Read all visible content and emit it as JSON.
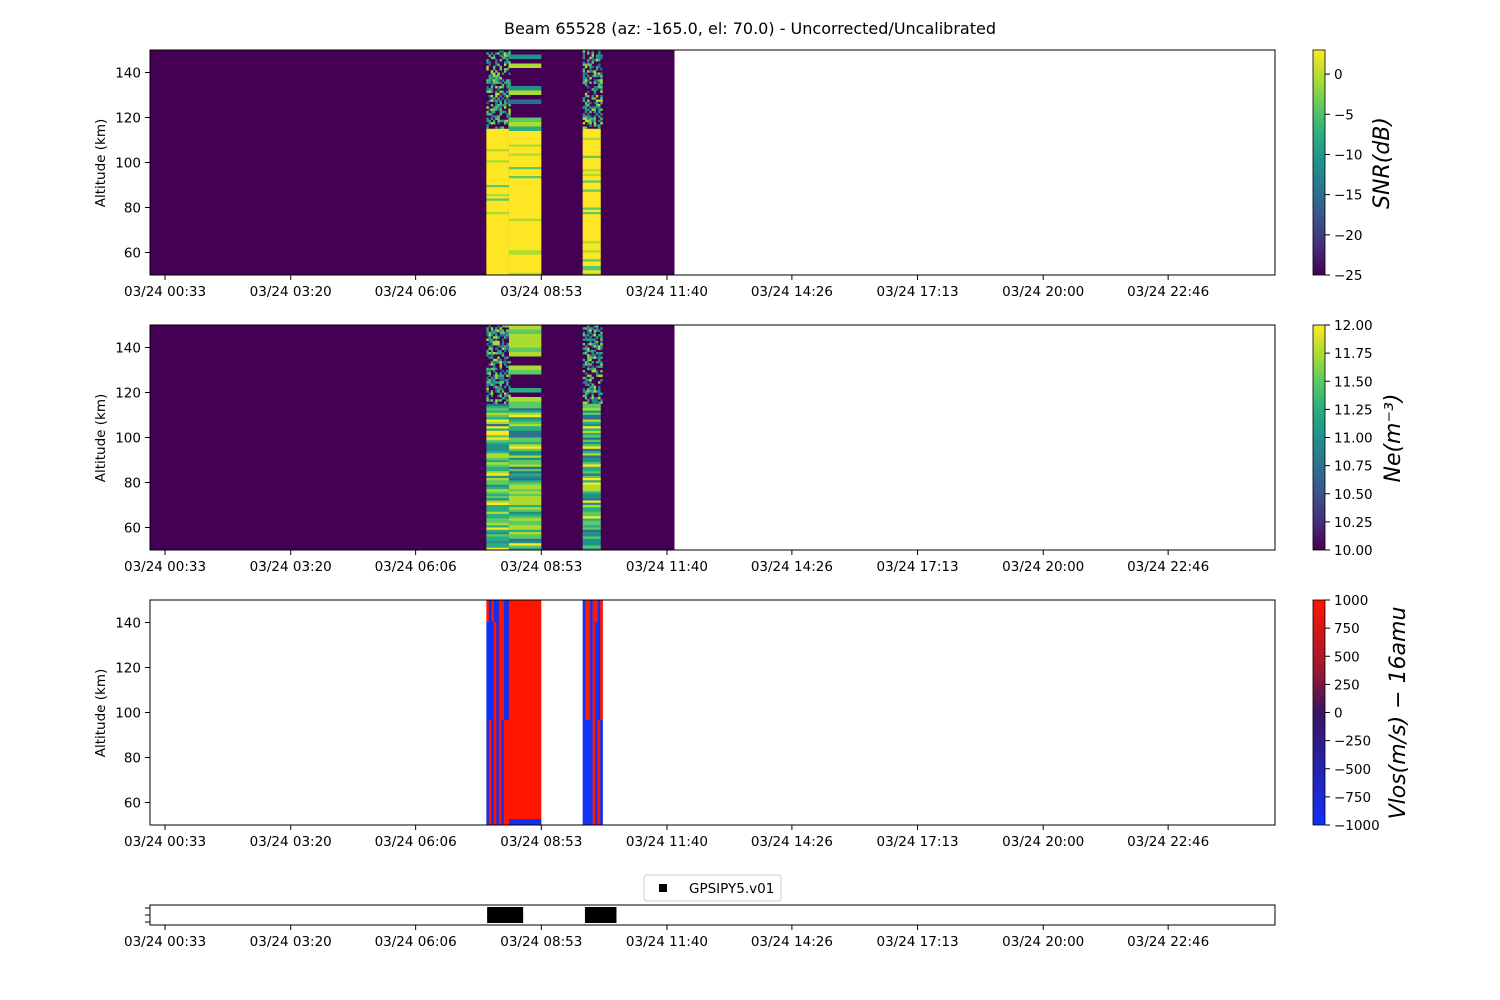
{
  "figure": {
    "title": "Beam 65528 (az: -165.0, el: 70.0) - Uncorrected/Uncalibrated"
  },
  "chart_data": [
    {
      "type": "heatmap",
      "id": "snr",
      "ylabel": "Altitude (km)",
      "colorbar_label": "SNR(dB)",
      "colorbar_ticks": [
        "0",
        "−5",
        "−10",
        "−15",
        "−20",
        "−25"
      ],
      "colorbar_range": [
        -25,
        3
      ],
      "colormap": "viridis",
      "ylim": [
        50,
        150
      ],
      "yticks": [
        "60",
        "80",
        "100",
        "120",
        "140"
      ],
      "data_extent_time": [
        "00:00",
        "11:50"
      ],
      "blocks": [
        {
          "start": "07:40",
          "end": "08:10",
          "top_km": 115,
          "below": "high",
          "above": "noisy"
        },
        {
          "start": "08:10",
          "end": "08:53",
          "top_km": 115,
          "below": "high",
          "above": "banded"
        },
        {
          "start": "09:48",
          "end": "10:12",
          "top_km": 115,
          "below": "high",
          "above": "noisy"
        }
      ]
    },
    {
      "type": "heatmap",
      "id": "ne",
      "ylabel": "Altitude (km)",
      "colorbar_label": "Ne(m⁻³)",
      "colorbar_ticks": [
        "12.00",
        "11.75",
        "11.50",
        "11.25",
        "11.00",
        "10.75",
        "10.50",
        "10.25",
        "10.00"
      ],
      "colorbar_range": [
        10.0,
        12.0
      ],
      "colormap": "viridis",
      "ylim": [
        50,
        150
      ],
      "yticks": [
        "60",
        "80",
        "100",
        "120",
        "140"
      ],
      "data_extent_time": [
        "00:00",
        "11:50"
      ],
      "blocks": [
        {
          "start": "07:40",
          "end": "08:10",
          "top_km": 115,
          "below": "banded",
          "above": "noisy"
        },
        {
          "start": "08:10",
          "end": "08:53",
          "top_km": 115,
          "below": "banded",
          "above": "banded"
        },
        {
          "start": "09:48",
          "end": "10:12",
          "top_km": 115,
          "below": "banded",
          "above": "noisy"
        }
      ]
    },
    {
      "type": "heatmap",
      "id": "vlos",
      "ylabel": "Altitude (km)",
      "colorbar_label": "Vlos(m/s) − 16amu",
      "colorbar_ticks": [
        "1000",
        "750",
        "500",
        "250",
        "0",
        "−250",
        "−500",
        "−750",
        "−1000"
      ],
      "colorbar_range": [
        -1000,
        1000
      ],
      "colormap": "blue-red",
      "ylim": [
        50,
        150
      ],
      "yticks": [
        "60",
        "80",
        "100",
        "120",
        "140"
      ],
      "blocks": [
        {
          "start": "07:40",
          "end": "08:10",
          "pattern": "alternating"
        },
        {
          "start": "08:10",
          "end": "08:53",
          "pattern": "solid-red"
        },
        {
          "start": "09:48",
          "end": "10:12",
          "pattern": "alternating"
        }
      ]
    },
    {
      "type": "scatter",
      "id": "gps",
      "legend": "GPSIPY5.v01",
      "marker": "square",
      "segments": [
        {
          "start": "07:45",
          "end": "08:25"
        },
        {
          "start": "09:55",
          "end": "10:30"
        }
      ]
    }
  ],
  "time_axis": {
    "range": [
      "00:13",
      "25:08"
    ],
    "ticks": [
      {
        "t": "00:33",
        "label": "03/24 00:33"
      },
      {
        "t": "03:20",
        "label": "03/24 03:20"
      },
      {
        "t": "06:06",
        "label": "03/24 06:06"
      },
      {
        "t": "08:53",
        "label": "03/24 08:53"
      },
      {
        "t": "11:40",
        "label": "03/24 11:40"
      },
      {
        "t": "14:26",
        "label": "03/24 14:26"
      },
      {
        "t": "17:13",
        "label": "03/24 17:13"
      },
      {
        "t": "20:00",
        "label": "03/24 20:00"
      },
      {
        "t": "22:46",
        "label": "03/24 22:46"
      }
    ]
  },
  "colors": {
    "viridis_low": "#440154",
    "viridis_high": "#fde725",
    "vlos_red": "#ff1500",
    "vlos_blue": "#1030f0"
  }
}
